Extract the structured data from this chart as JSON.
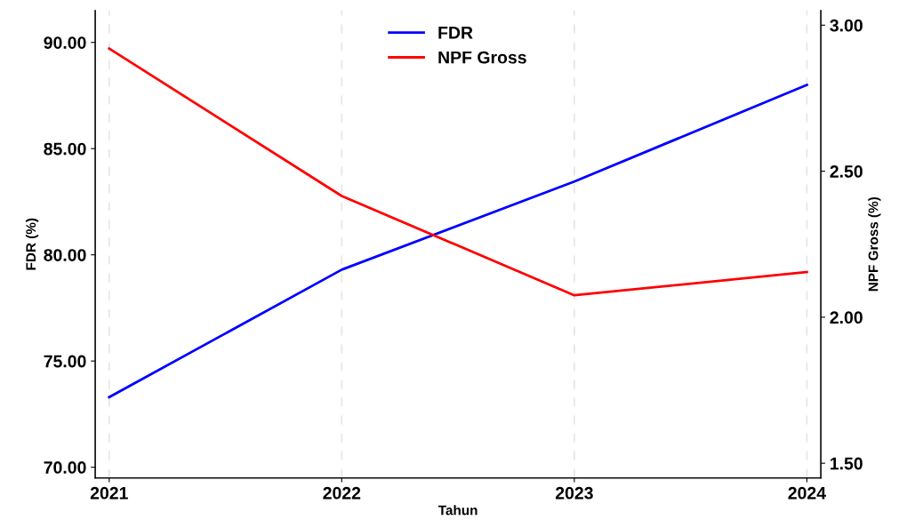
{
  "chart_data": {
    "type": "line",
    "xlabel": "Tahun",
    "ylabel": "FDR (%)",
    "y2label": "NPF Gross (%)",
    "categories": [
      "2021",
      "2022",
      "2023",
      "2024"
    ],
    "series": [
      {
        "name": "FDR",
        "color": "#0000ff",
        "values": [
          73.3,
          79.3,
          83.45,
          88.0
        ]
      },
      {
        "name": "NPF Gross",
        "color": "#ff0000",
        "axis": "y2",
        "values": [
          2.92,
          2.415,
          2.075,
          2.155
        ]
      }
    ],
    "ylim": [
      69.5,
      91.5
    ],
    "yticks": [
      {
        "value": 70,
        "label": "70.00"
      },
      {
        "value": 75,
        "label": "75.00"
      },
      {
        "value": 80,
        "label": "80.00"
      },
      {
        "value": 85,
        "label": "85.00"
      },
      {
        "value": 90,
        "label": "90.00"
      }
    ],
    "y2lim": [
      1.45,
      3.05
    ],
    "y2ticks": [
      {
        "value": 1.5,
        "label": "1.50"
      },
      {
        "value": 2.0,
        "label": "2.00"
      },
      {
        "value": 2.5,
        "label": "2.50"
      },
      {
        "value": 3.0,
        "label": "3.00"
      }
    ],
    "grid": "x",
    "legend": "top",
    "line_style": "solid",
    "marker": "none"
  }
}
